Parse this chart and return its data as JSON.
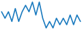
{
  "x": [
    0,
    1,
    2,
    3,
    4,
    5,
    6,
    7,
    8,
    9,
    10,
    11,
    12,
    13,
    14,
    15,
    16,
    17,
    18,
    19,
    20,
    21,
    22,
    23
  ],
  "y": [
    6,
    4,
    6,
    3,
    7,
    3,
    6,
    8,
    6,
    9,
    5,
    9,
    4,
    1,
    3,
    1,
    4,
    2,
    4,
    2,
    5,
    2,
    5,
    3
  ],
  "line_color": "#1a7abf",
  "line_width": 1.2,
  "background_color": "#ffffff"
}
